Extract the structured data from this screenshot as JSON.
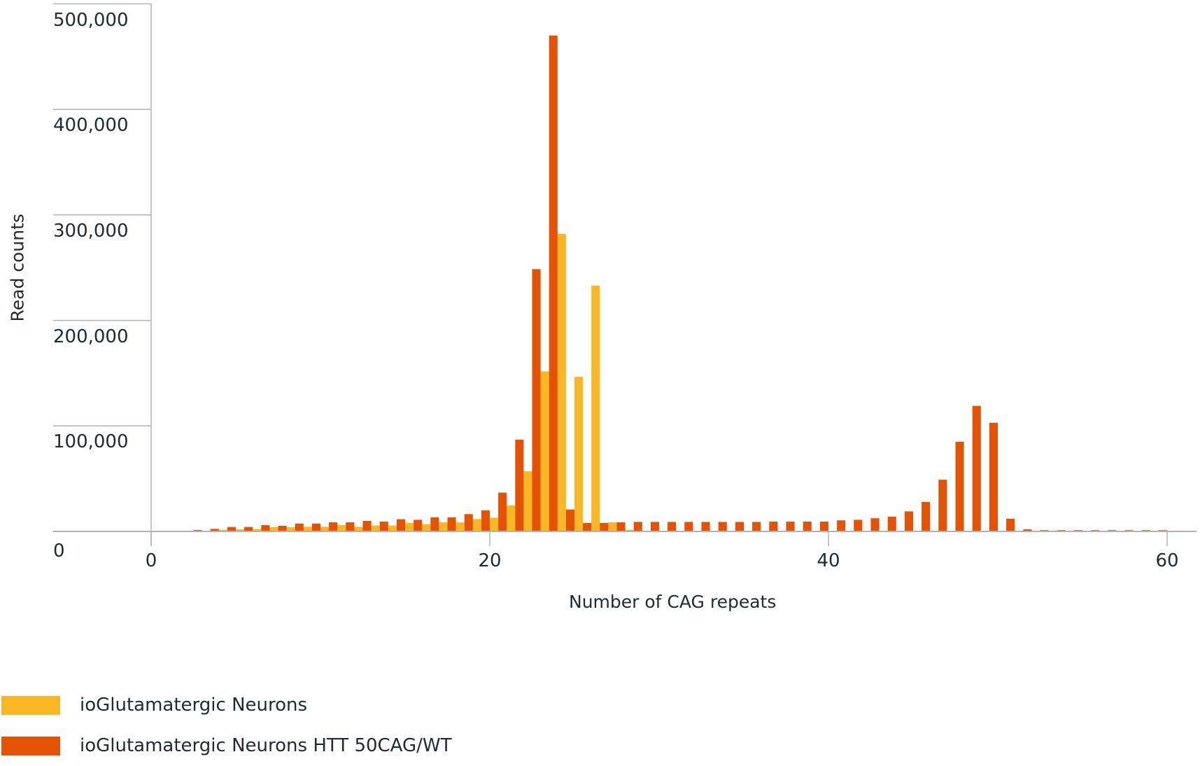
{
  "chart_data": {
    "type": "bar",
    "title": "",
    "xlabel": "Number of CAG repeats",
    "ylabel": "Read counts",
    "xlim": [
      0,
      60
    ],
    "ylim": [
      0,
      500000
    ],
    "x_ticks": [
      0,
      20,
      40,
      60
    ],
    "y_ticks": [
      0,
      100000,
      200000,
      300000,
      400000,
      500000
    ],
    "y_tick_labels": [
      "0",
      "100,000",
      "200,000",
      "300,000",
      "400,000",
      "500,000"
    ],
    "x_tick_labels": [
      "0",
      "20",
      "40",
      "60"
    ],
    "grid": "horizontal tick lines at left margin only",
    "legend_position": "bottom-left",
    "categories": [
      3,
      4,
      5,
      6,
      7,
      8,
      9,
      10,
      11,
      12,
      13,
      14,
      15,
      16,
      17,
      18,
      19,
      20,
      21,
      22,
      23,
      24,
      25,
      26,
      27,
      28,
      29,
      30,
      31,
      32,
      33,
      34,
      35,
      36,
      37,
      38,
      39,
      40,
      41,
      42,
      43,
      44,
      45,
      46,
      47,
      48,
      49,
      50,
      51,
      52,
      53,
      54,
      55,
      56,
      57,
      58,
      59,
      60
    ],
    "series": [
      {
        "name": "ioGlutamatergic Neurons",
        "color": "#F9B625",
        "values": [
          0,
          1500,
          2000,
          2200,
          4000,
          4000,
          4400,
          4400,
          6000,
          4400,
          5600,
          5600,
          8200,
          6900,
          8600,
          8600,
          11700,
          13000,
          24800,
          57000,
          151700,
          282000,
          146500,
          233000,
          8600,
          1500,
          0,
          0,
          0,
          0,
          0,
          0,
          0,
          0,
          0,
          0,
          0,
          0,
          0,
          0,
          0,
          0,
          0,
          0,
          0,
          0,
          0,
          0,
          0,
          0,
          0,
          0,
          0,
          0,
          0,
          0,
          0,
          0
        ]
      },
      {
        "name": "ioGlutamatergic Neurons HTT 50CAG/WT",
        "color": "#E35205",
        "values": [
          1300,
          2400,
          4200,
          4200,
          6000,
          5300,
          7500,
          7500,
          8600,
          8600,
          10000,
          9300,
          11600,
          11000,
          13400,
          13400,
          16400,
          20000,
          36800,
          87000,
          248600,
          470000,
          20800,
          8000,
          8000,
          8600,
          9000,
          9000,
          9000,
          9000,
          9000,
          9000,
          9000,
          9000,
          9300,
          9300,
          9300,
          9300,
          10500,
          11000,
          12500,
          14000,
          19000,
          28000,
          49000,
          85000,
          119000,
          103000,
          12000,
          2000,
          1200,
          1200,
          1200,
          1200,
          1200,
          1200,
          1200,
          1200
        ]
      }
    ]
  },
  "axes": {
    "y_title": "Read counts",
    "x_title": "Number of CAG repeats",
    "y_zero_label": "0"
  },
  "legend": {
    "items": [
      {
        "label": "ioGlutamatergic Neurons",
        "color": "#F9B625"
      },
      {
        "label": "ioGlutamatergic Neurons HTT 50CAG/WT",
        "color": "#E35205"
      }
    ]
  },
  "style": {
    "axis_color": "#b3b3b3",
    "text_color": "#1f2a33"
  }
}
